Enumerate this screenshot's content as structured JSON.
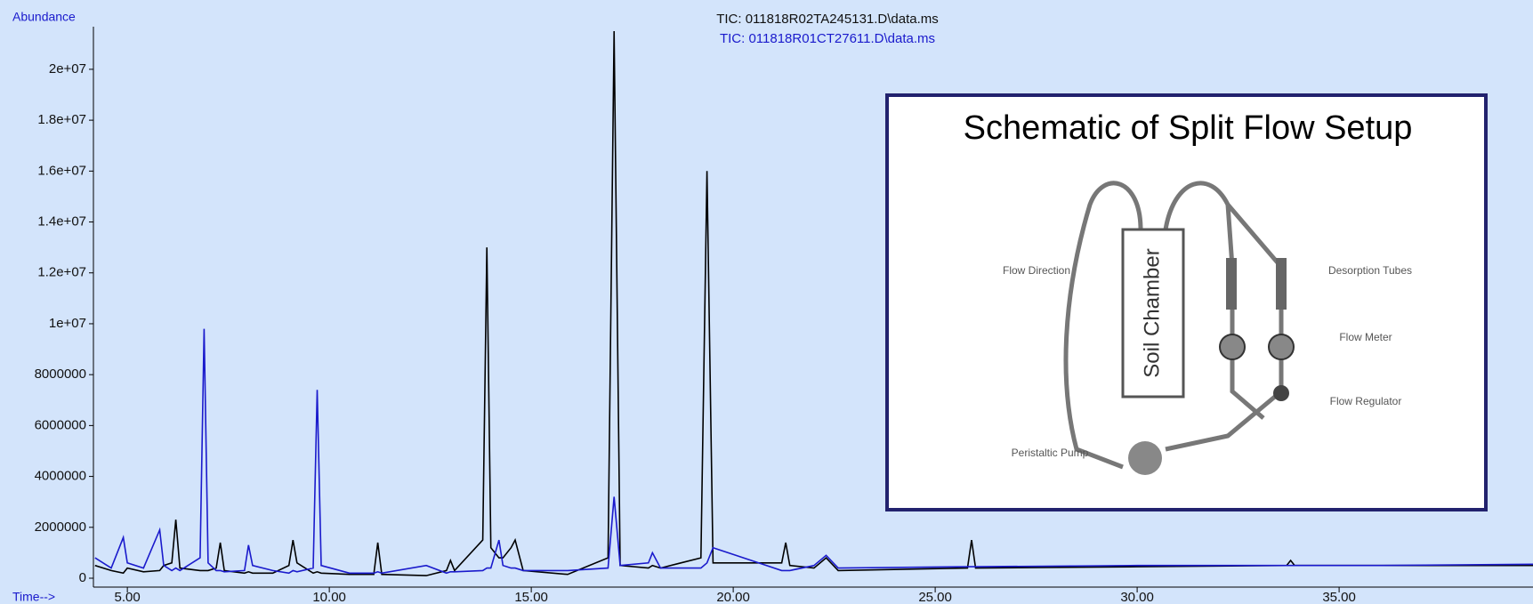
{
  "chart_data": {
    "type": "line",
    "y_label": "Abundance",
    "x_label": "Time-->",
    "x": [
      4.2,
      4.6,
      4.9,
      5.0,
      5.4,
      5.8,
      5.9,
      6.1,
      6.2,
      6.3,
      6.8,
      6.9,
      7.0,
      7.2,
      7.3,
      7.4,
      7.9,
      8.0,
      8.1,
      8.6,
      9.0,
      9.1,
      9.2,
      9.6,
      9.7,
      9.8,
      10.5,
      11.1,
      11.2,
      11.3,
      12.4,
      12.9,
      13.0,
      13.1,
      13.8,
      13.9,
      14.0,
      14.2,
      14.3,
      14.5,
      14.6,
      14.8,
      15.9,
      16.9,
      17.05,
      17.2,
      17.9,
      18.0,
      18.2,
      19.2,
      19.35,
      19.5,
      21.2,
      21.3,
      21.4,
      22.0,
      22.3,
      22.6,
      25.8,
      25.9,
      26.0,
      30.0,
      33.7,
      33.8,
      33.9,
      36.0,
      39.8
    ],
    "series": [
      {
        "name": "TIC: 011818R02TA245131.D\\data.ms",
        "color": "#000000",
        "values": [
          500000,
          300000,
          200000,
          400000,
          250000,
          300000,
          500000,
          600000,
          2300000,
          400000,
          300000,
          300000,
          300000,
          400000,
          1400000,
          300000,
          200000,
          250000,
          200000,
          200000,
          500000,
          1500000,
          600000,
          200000,
          250000,
          200000,
          150000,
          150000,
          1400000,
          150000,
          100000,
          300000,
          700000,
          300000,
          1500000,
          13000000,
          1200000,
          800000,
          800000,
          1200000,
          1500000,
          300000,
          150000,
          800000,
          21500000,
          500000,
          400000,
          500000,
          400000,
          800000,
          16000000,
          600000,
          600000,
          1400000,
          500000,
          400000,
          800000,
          300000,
          400000,
          1500000,
          400000,
          450000,
          500000,
          700000,
          500000,
          500000,
          500000
        ]
      },
      {
        "name": "TIC: 011818R01CT27611.D\\data.ms",
        "color": "#1a1acc",
        "values": [
          800000,
          400000,
          1600000,
          600000,
          400000,
          1900000,
          500000,
          300000,
          400000,
          300000,
          800000,
          9800000,
          600000,
          300000,
          300000,
          250000,
          300000,
          1300000,
          500000,
          300000,
          200000,
          300000,
          250000,
          400000,
          7400000,
          500000,
          200000,
          200000,
          250000,
          200000,
          500000,
          200000,
          250000,
          250000,
          300000,
          400000,
          400000,
          1500000,
          500000,
          400000,
          400000,
          300000,
          300000,
          400000,
          3200000,
          500000,
          600000,
          1000000,
          400000,
          400000,
          600000,
          1200000,
          300000,
          300000,
          300000,
          500000,
          900000,
          400000,
          450000,
          450000,
          450000,
          500000,
          500000,
          500000,
          500000,
          500000,
          550000
        ]
      }
    ],
    "xlim": [
      4.16,
      39.8
    ],
    "xticks": [
      {
        "value": 5,
        "label": "5.00"
      },
      {
        "value": 10,
        "label": "10.00"
      },
      {
        "value": 15,
        "label": "15.00"
      },
      {
        "value": 20,
        "label": "20.00"
      },
      {
        "value": 25,
        "label": "25.00"
      },
      {
        "value": 30,
        "label": "30.00"
      },
      {
        "value": 35,
        "label": "35.00"
      }
    ],
    "ylim": [
      0,
      21500000
    ],
    "yticks": [
      0,
      2000000,
      4000000,
      6000000,
      8000000,
      {
        "value": 10000000,
        "label": "1e+07"
      },
      {
        "value": 12000000,
        "label": "1.2e+07"
      },
      {
        "value": 14000000,
        "label": "1.4e+07"
      },
      {
        "value": 16000000,
        "label": "1.6e+07"
      },
      {
        "value": 18000000,
        "label": "1.8e+07"
      },
      {
        "value": 20000000,
        "label": "2e+07"
      }
    ],
    "grid": false
  },
  "inset": {
    "title": "Schematic of Split Flow Setup",
    "chamber": "Soil Chamber",
    "labels": [
      "Flow Direction",
      "Desorption Tubes",
      "Flow Meter",
      "Flow Regulator",
      "Peristaltic Pump"
    ]
  }
}
